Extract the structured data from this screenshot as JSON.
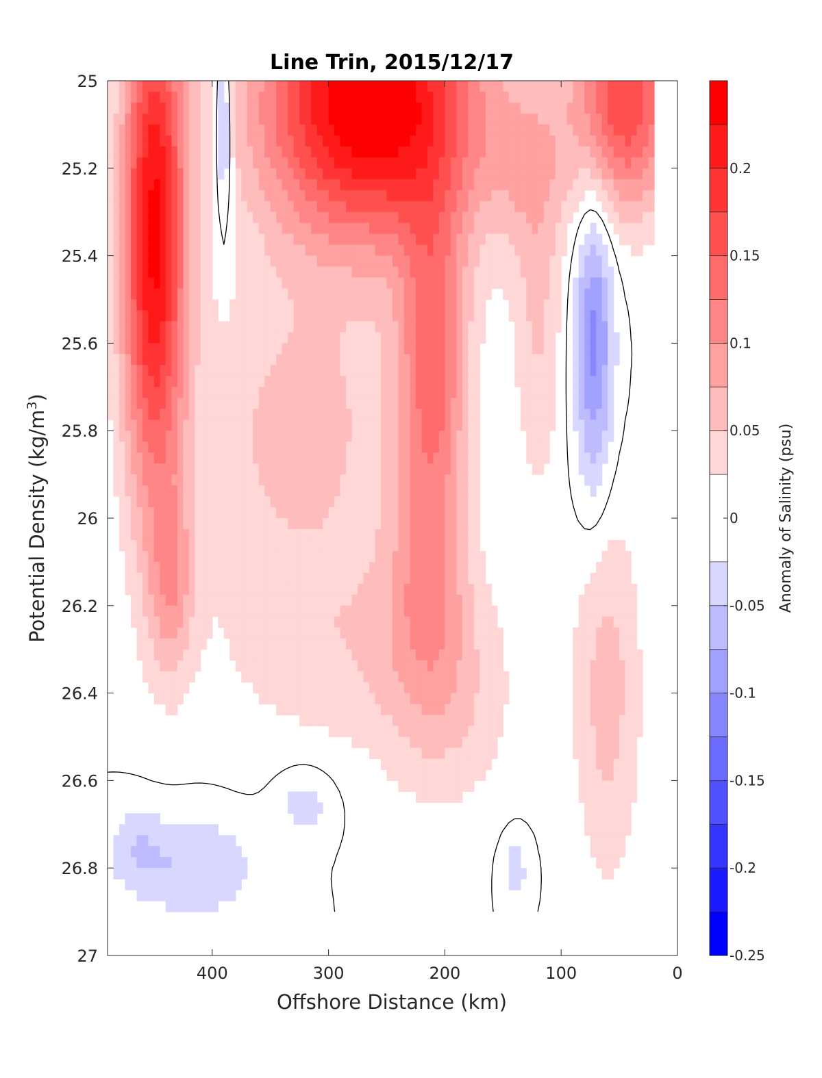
{
  "chart_data": {
    "type": "heatmap",
    "subtype": "filled-contour",
    "title": "Line Trin, 2015/12/17",
    "xlabel": "Offshore Distance (km)",
    "ylabel_main": "Potential Density (kg/m",
    "ylabel_sup": "3",
    "ylabel_close": ")",
    "colorbar_label": "Anomaly of Salinity (psu)",
    "xlim": [
      490,
      0
    ],
    "x_reversed": true,
    "ylim": [
      25,
      27
    ],
    "y_reversed": true,
    "x_ticks": [
      {
        "value": 400,
        "label": "400"
      },
      {
        "value": 300,
        "label": "300"
      },
      {
        "value": 200,
        "label": "200"
      },
      {
        "value": 100,
        "label": "100"
      },
      {
        "value": 0,
        "label": "0"
      }
    ],
    "y_ticks": [
      {
        "value": 25,
        "label": "25"
      },
      {
        "value": 25.2,
        "label": "25.2"
      },
      {
        "value": 25.4,
        "label": "25.4"
      },
      {
        "value": 25.6,
        "label": "25.6"
      },
      {
        "value": 25.8,
        "label": "25.8"
      },
      {
        "value": 26,
        "label": "26"
      },
      {
        "value": 26.2,
        "label": "26.2"
      },
      {
        "value": 26.4,
        "label": "26.4"
      },
      {
        "value": 26.6,
        "label": "26.6"
      },
      {
        "value": 26.8,
        "label": "26.8"
      },
      {
        "value": 27,
        "label": "27"
      }
    ],
    "colorbar": {
      "range": [
        -0.25,
        0.25
      ],
      "levels": [
        -0.25,
        -0.225,
        -0.2,
        -0.175,
        -0.15,
        -0.125,
        -0.1,
        -0.075,
        -0.05,
        -0.025,
        0.025,
        0.05,
        0.075,
        0.1,
        0.125,
        0.15,
        0.175,
        0.2,
        0.225,
        0.25
      ],
      "colors": [
        "#0000ff",
        "#1a1aff",
        "#3535ff",
        "#5050ff",
        "#6b6bff",
        "#8686ff",
        "#a1a1ff",
        "#bcbcff",
        "#d7d7ff",
        "#ffffff",
        "#ffd7d7",
        "#ffbcbc",
        "#ffa1a1",
        "#ff8686",
        "#ff6b6b",
        "#ff5050",
        "#ff3535",
        "#ff1a1a",
        "#ff0000"
      ],
      "ticks": [
        {
          "value": 0.2,
          "label": "0.2"
        },
        {
          "value": 0.15,
          "label": "0.15"
        },
        {
          "value": 0.1,
          "label": "0.1"
        },
        {
          "value": 0.05,
          "label": "0.05"
        },
        {
          "value": 0,
          "label": "0"
        },
        {
          "value": -0.05,
          "label": "-0.05"
        },
        {
          "value": -0.1,
          "label": "-0.1"
        },
        {
          "value": -0.15,
          "label": "-0.15"
        },
        {
          "value": -0.2,
          "label": "-0.2"
        },
        {
          "value": -0.25,
          "label": "-0.25"
        }
      ]
    },
    "data_extent": {
      "x": [
        490,
        20
      ],
      "y": [
        25,
        26.9
      ]
    },
    "grid": false,
    "zero_contour": true
  }
}
